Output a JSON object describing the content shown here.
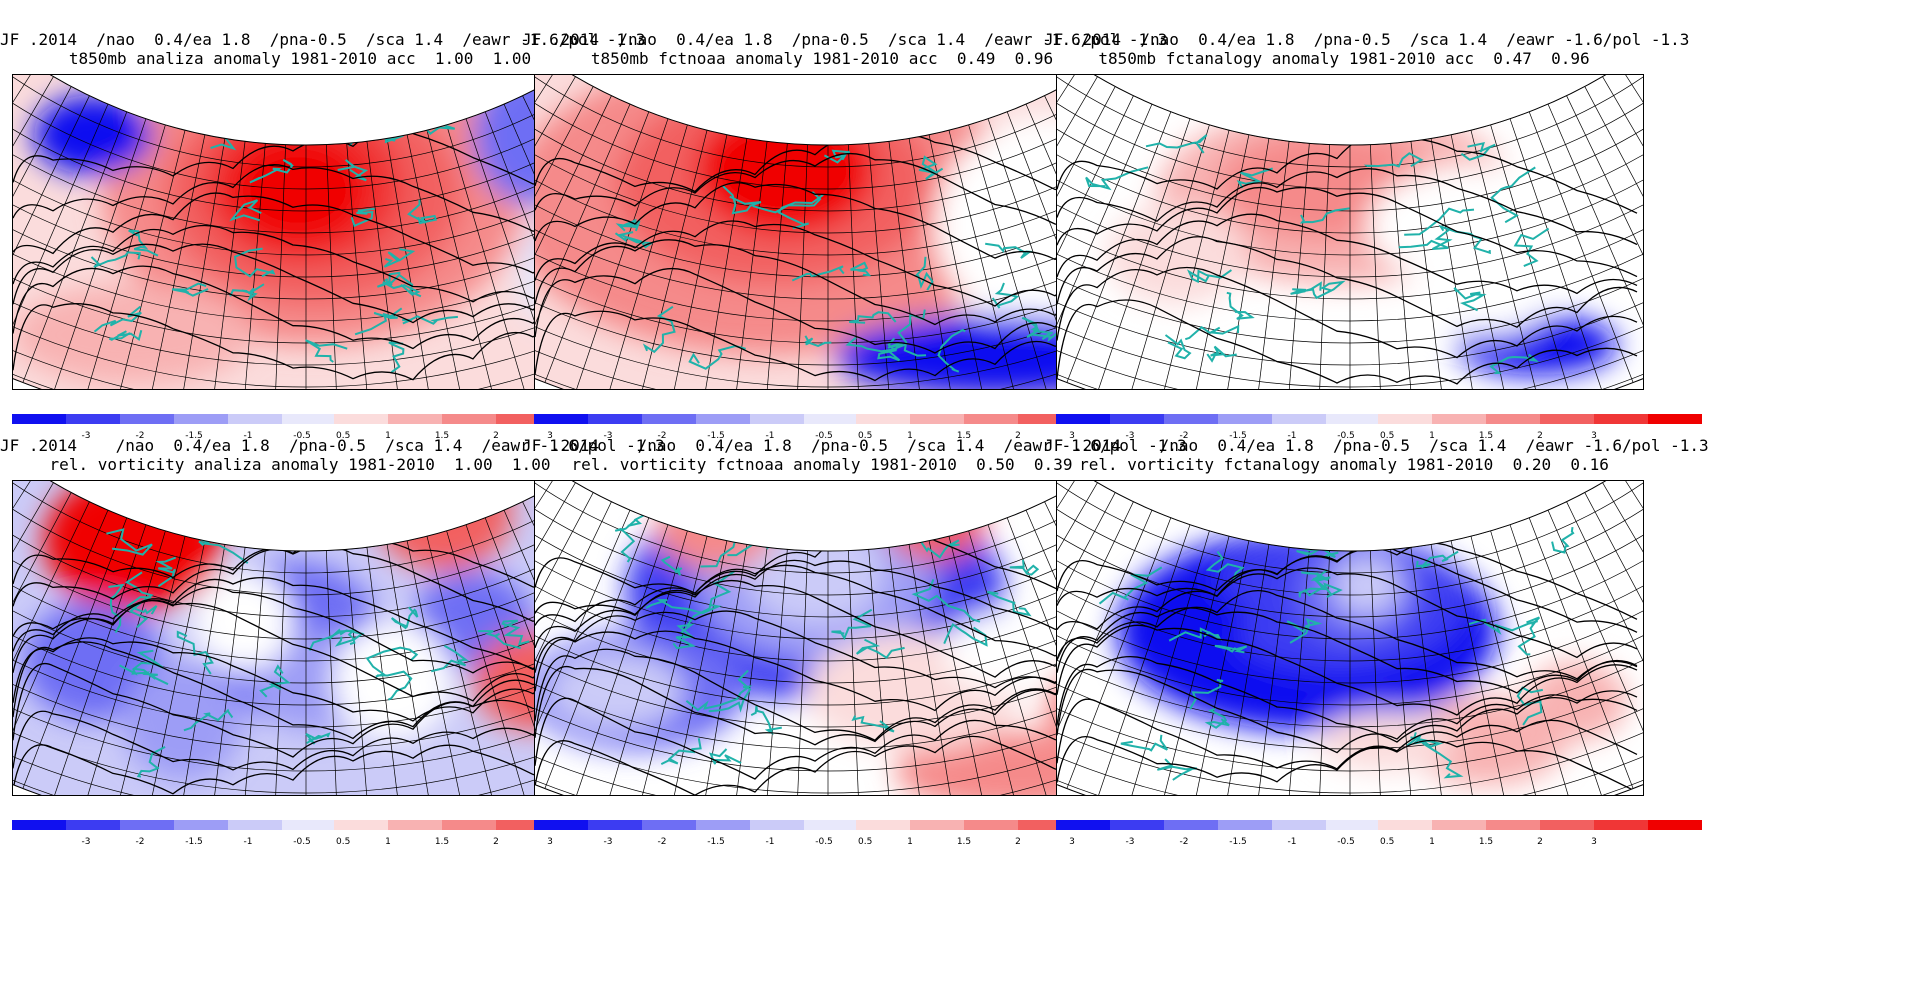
{
  "colorbar": {
    "neg_colors": [
      "#1010f0",
      "#3c3cf2",
      "#6e6ef4",
      "#9d9df6",
      "#cbcbf8",
      "#e8e8fb"
    ],
    "pos_colors": [
      "#fbdcdc",
      "#f8b2b2",
      "#f58a8a",
      "#f26060",
      "#f03636",
      "#f00000"
    ],
    "neg_labels": [
      "-3",
      "-2",
      "-1.5",
      "-1",
      "-0.5"
    ],
    "pos_labels": [
      "0.5",
      "1",
      "1.5",
      "2",
      "3"
    ]
  },
  "panels": [
    {
      "title1": "JF .2014  /nao  0.4/ea 1.8  /pna-0.5  /sca 1.4  /eawr -1.6/pol -1.3",
      "title2": "t850mb analiza anomaly 1981-2010 acc  1.00  1.00",
      "field": "temperature",
      "scheme": "strong-warm"
    },
    {
      "title1": "JF .2014  /nao  0.4/ea 1.8  /pna-0.5  /sca 1.4  /eawr -1.6/pol -1.3",
      "title2": "t850mb fctnoaa anomaly 1981-2010 acc  0.49  0.96",
      "field": "temperature",
      "scheme": "warm-west"
    },
    {
      "title1": "JF .2014  /nao  0.4/ea 1.8  /pna-0.5  /sca 1.4  /eawr -1.6/pol -1.3",
      "title2": "t850mb fctanalogy anomaly 1981-2010 acc  0.47  0.96",
      "field": "temperature",
      "scheme": "weak-warm"
    },
    {
      "title1": "JF .2014    /nao  0.4/ea 1.8  /pna-0.5  /sca 1.4  /eawr -1.6/pol -1.3",
      "title2": "rel. vorticity analiza anomaly 1981-2010  1.00  1.00",
      "field": "vorticity",
      "scheme": "vort-mixed"
    },
    {
      "title1": "JF .2014    /nao  0.4/ea 1.8  /pna-0.5  /sca 1.4  /eawr -1.6/pol -1.3",
      "title2": "rel. vorticity fctnoaa anomaly 1981-2010  0.50  0.39",
      "field": "vorticity",
      "scheme": "vort-cold"
    },
    {
      "title1": "JF .2014    /nao  0.4/ea 1.8  /pna-0.5  /sca 1.4  /eawr -1.6/pol -1.3",
      "title2": "rel. vorticity fctanalogy anomaly 1981-2010  0.20  0.16",
      "field": "vorticity",
      "scheme": "vort-weak"
    }
  ]
}
